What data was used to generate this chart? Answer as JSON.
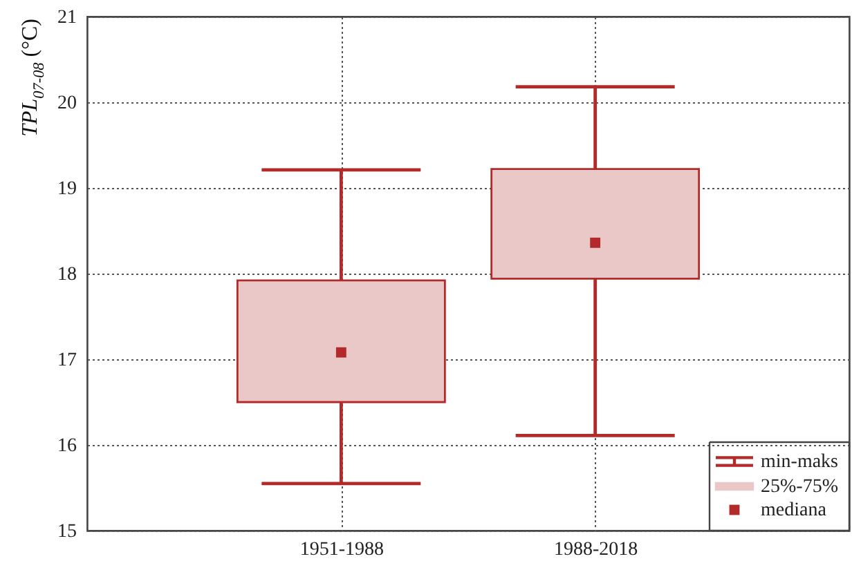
{
  "chart_data": {
    "type": "box",
    "ylabel": "TPL$_{07-08}$ (°C)",
    "categories": [
      "1951-1988",
      "1988-2018"
    ],
    "boxes": [
      {
        "low": 15.55,
        "q1": 16.5,
        "median": 17.08,
        "q3": 17.92,
        "high": 19.21
      },
      {
        "low": 16.11,
        "q1": 17.94,
        "median": 18.36,
        "q3": 19.22,
        "high": 20.18
      }
    ],
    "color": "#b22a2a",
    "marker": "square",
    "ylim": [
      15,
      21
    ],
    "yticks": [
      15,
      16,
      17,
      18,
      19,
      20,
      21
    ],
    "grid": true,
    "annotations": [
      "min-maks",
      "25%-75%",
      "mediana"
    ]
  }
}
